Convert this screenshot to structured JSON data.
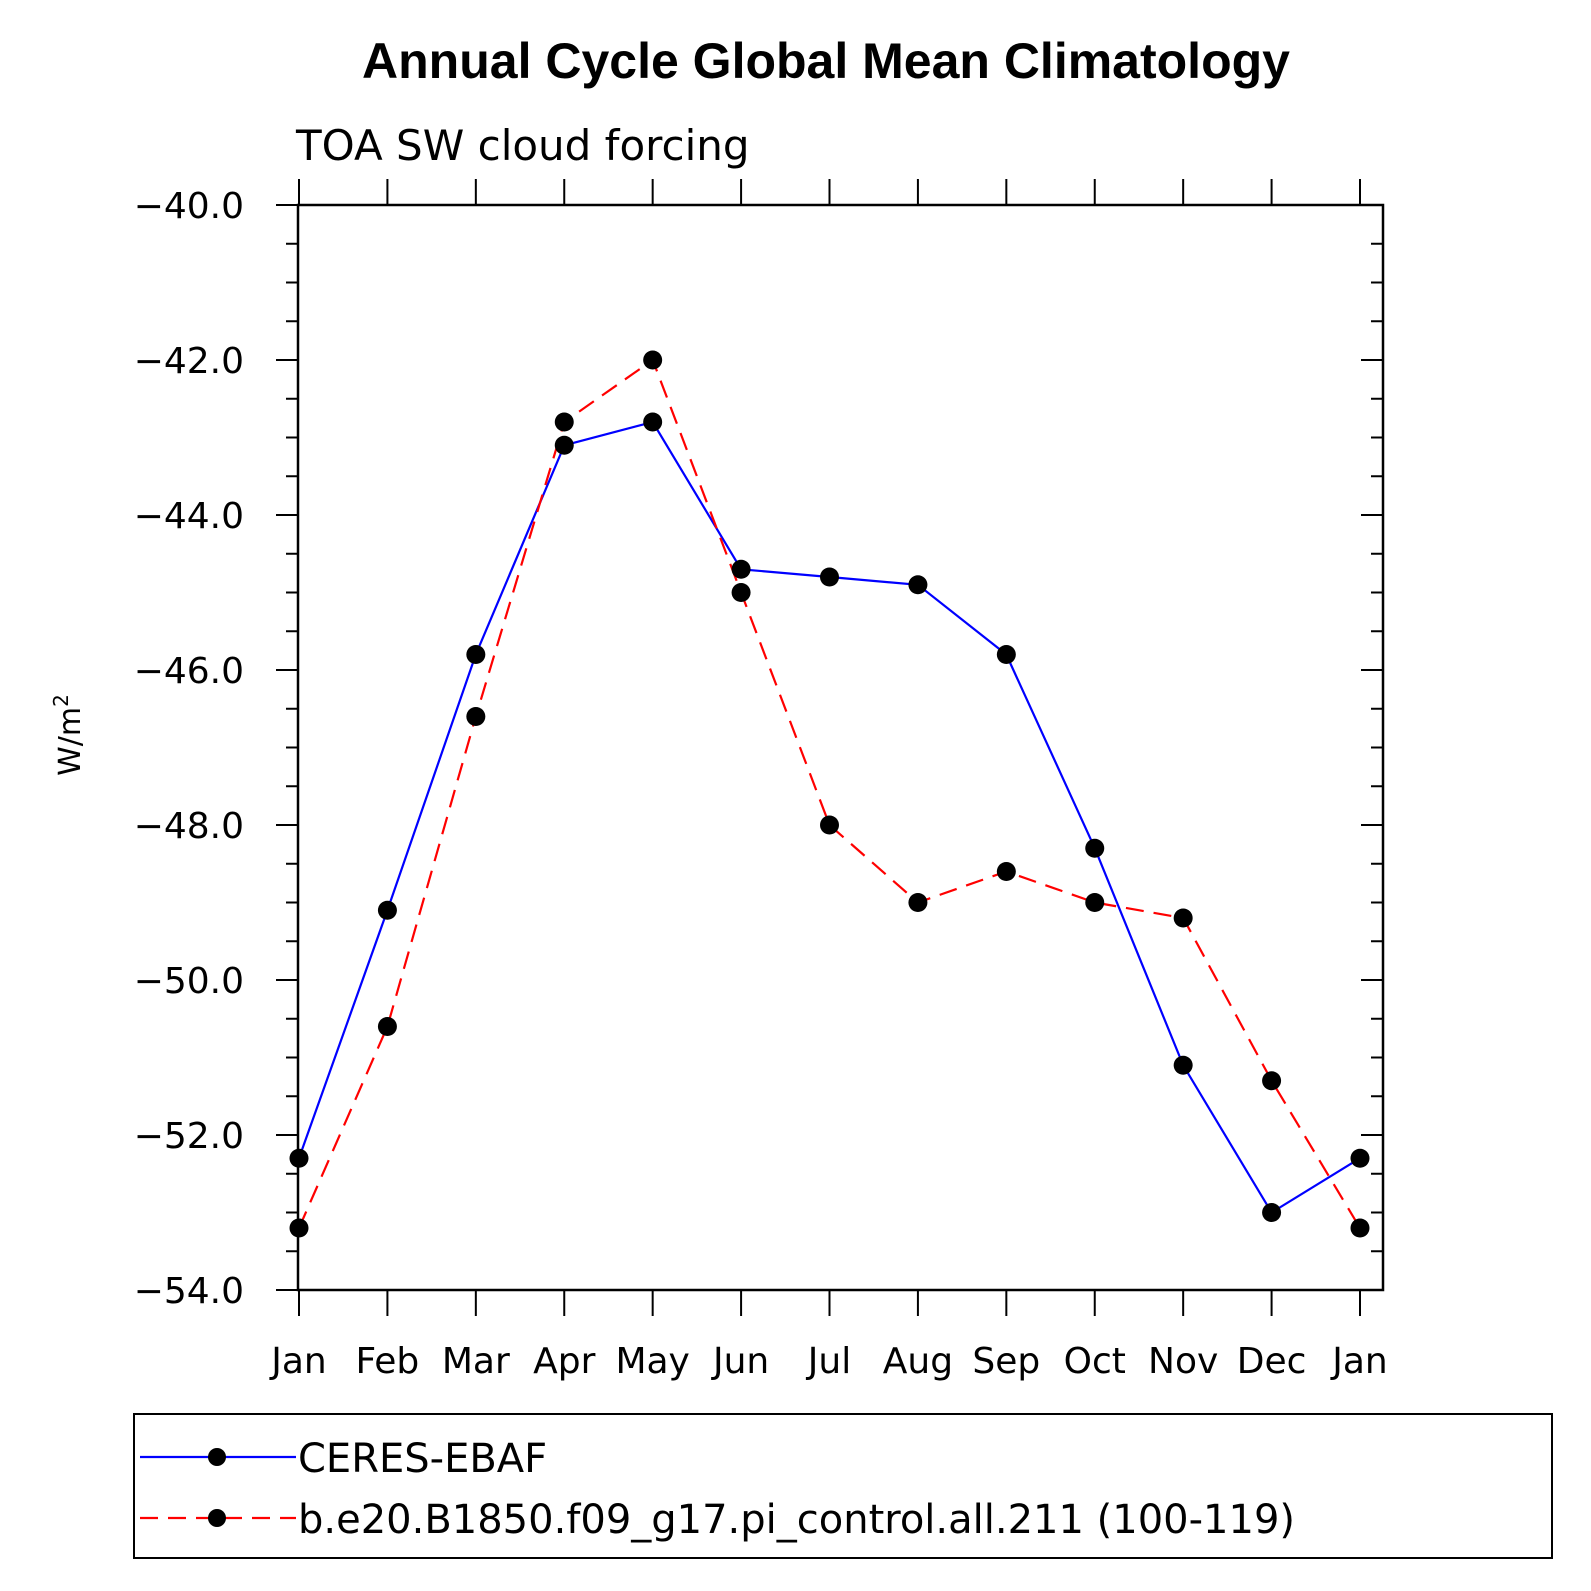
{
  "chart_data": {
    "type": "line",
    "title": "Annual Cycle Global Mean Climatology",
    "subtitle": "TOA SW cloud forcing",
    "ylabel": "W/m",
    "ylabel_sup": "2",
    "xlabel": "",
    "categories": [
      "Jan",
      "Feb",
      "Mar",
      "Apr",
      "May",
      "Jun",
      "Jul",
      "Aug",
      "Sep",
      "Oct",
      "Nov",
      "Dec",
      "Jan"
    ],
    "ylim": [
      -54.0,
      -40.0
    ],
    "yticks": [
      "-40.0",
      "-42.0",
      "-44.0",
      "-46.0",
      "-48.0",
      "-50.0",
      "-52.0",
      "-54.0"
    ],
    "grid": false,
    "legend_position": "bottom",
    "series": [
      {
        "name": "CERES-EBAF",
        "color": "#0000ff",
        "dash": "solid",
        "values": [
          -52.3,
          -49.1,
          -45.8,
          -43.1,
          -42.8,
          -44.7,
          -44.8,
          -44.9,
          -45.8,
          -48.3,
          -51.1,
          -53.0,
          -52.3
        ]
      },
      {
        "name": "b.e20.B1850.f09_g17.pi_control.all.211 (100-119)",
        "color": "#ff0000",
        "dash": "dashed",
        "values": [
          -53.2,
          -50.6,
          -46.6,
          -42.8,
          -42.0,
          -45.0,
          -48.0,
          -49.0,
          -48.6,
          -49.0,
          -49.2,
          -51.3,
          -53.2
        ]
      }
    ]
  }
}
